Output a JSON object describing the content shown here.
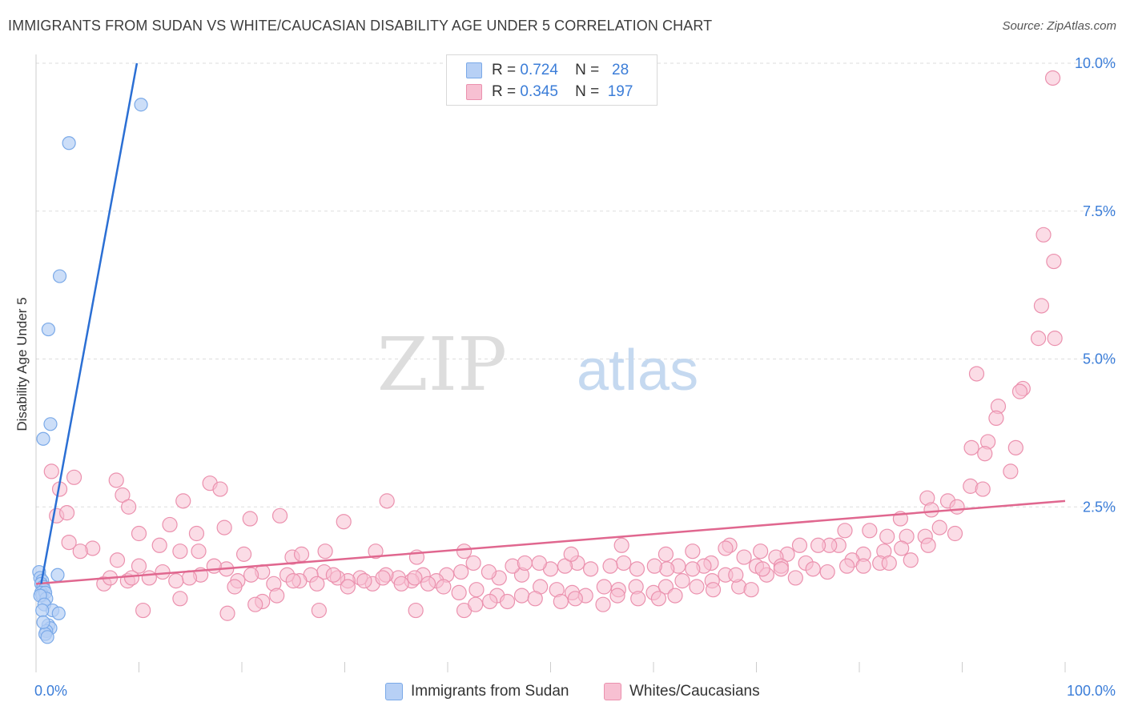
{
  "title": "IMMIGRANTS FROM SUDAN VS WHITE/CAUCASIAN DISABILITY AGE UNDER 5 CORRELATION CHART",
  "source": "Source: ZipAtlas.com",
  "watermark": {
    "part1": "ZIP",
    "part2": "atlas"
  },
  "colors": {
    "blue_fill": "#b7d0f5",
    "blue_stroke": "#7aa9e8",
    "blue_line": "#2b6fd4",
    "pink_fill": "#f7c0d2",
    "pink_stroke": "#eb91ae",
    "pink_line": "#e0678f",
    "value_text": "#3b7dd8",
    "grid": "#dddddd"
  },
  "legend": {
    "rows": [
      {
        "r_label": "R =",
        "r_value": "0.724",
        "n_label": "N =",
        "n_value": "28"
      },
      {
        "r_label": "R =",
        "r_value": "0.345",
        "n_label": "N =",
        "n_value": "197"
      }
    ]
  },
  "bottom_legend": {
    "series1": "Immigrants from Sudan",
    "series2": "Whites/Caucasians"
  },
  "chart_data": {
    "type": "scatter",
    "title": "IMMIGRANTS FROM SUDAN VS WHITE/CAUCASIAN DISABILITY AGE UNDER 5 CORRELATION CHART",
    "xlabel": "",
    "ylabel": "Disability Age Under 5",
    "xlim": [
      0,
      100
    ],
    "ylim": [
      0,
      10.3
    ],
    "x_tick_labels": [
      "0.0%",
      "100.0%"
    ],
    "y_ticks": [
      2.5,
      5.0,
      7.5,
      10.0
    ],
    "y_tick_labels": [
      "2.5%",
      "5.0%",
      "7.5%",
      "10.0%"
    ],
    "grid": true,
    "legend_position": "top-center",
    "series": [
      {
        "name": "Immigrants from Sudan",
        "color": "#b7d0f5",
        "trend": {
          "x": [
            0.5,
            9.8
          ],
          "y": [
            1.2,
            10.0
          ]
        },
        "points": [
          [
            10.2,
            9.3
          ],
          [
            3.2,
            8.65
          ],
          [
            2.3,
            6.4
          ],
          [
            1.2,
            5.5
          ],
          [
            1.4,
            3.9
          ],
          [
            0.7,
            3.65
          ],
          [
            2.1,
            1.35
          ],
          [
            0.3,
            1.4
          ],
          [
            0.4,
            1.3
          ],
          [
            0.6,
            1.25
          ],
          [
            0.5,
            1.2
          ],
          [
            0.7,
            1.15
          ],
          [
            0.8,
            1.1
          ],
          [
            0.5,
            1.05
          ],
          [
            0.6,
            1.0
          ],
          [
            0.9,
            1.05
          ],
          [
            1.0,
            0.95
          ],
          [
            0.4,
            1.0
          ],
          [
            0.8,
            0.85
          ],
          [
            1.6,
            0.75
          ],
          [
            0.6,
            0.75
          ],
          [
            2.2,
            0.7
          ],
          [
            1.2,
            0.5
          ],
          [
            1.4,
            0.45
          ],
          [
            1.0,
            0.4
          ],
          [
            0.9,
            0.35
          ],
          [
            1.1,
            0.3
          ],
          [
            0.7,
            0.55
          ]
        ]
      },
      {
        "name": "Whites/Caucasians",
        "color": "#f7c0d2",
        "trend": {
          "x": [
            0,
            100
          ],
          "y": [
            1.2,
            2.6
          ]
        },
        "points": [
          [
            98.8,
            9.75
          ],
          [
            97.9,
            7.1
          ],
          [
            98.9,
            6.65
          ],
          [
            97.7,
            5.9
          ],
          [
            99.0,
            5.35
          ],
          [
            97.4,
            5.35
          ],
          [
            91.4,
            4.75
          ],
          [
            95.9,
            4.5
          ],
          [
            95.6,
            4.45
          ],
          [
            93.5,
            4.2
          ],
          [
            93.3,
            4.0
          ],
          [
            92.5,
            3.6
          ],
          [
            95.2,
            3.5
          ],
          [
            90.9,
            3.5
          ],
          [
            92.2,
            3.4
          ],
          [
            94.7,
            3.1
          ],
          [
            90.8,
            2.85
          ],
          [
            92.0,
            2.8
          ],
          [
            86.6,
            2.65
          ],
          [
            88.6,
            2.6
          ],
          [
            89.5,
            2.5
          ],
          [
            87.0,
            2.45
          ],
          [
            84.0,
            2.3
          ],
          [
            87.8,
            2.15
          ],
          [
            89.3,
            2.05
          ],
          [
            86.4,
            2.0
          ],
          [
            84.6,
            2.0
          ],
          [
            82.7,
            2.0
          ],
          [
            81.0,
            2.1
          ],
          [
            78.6,
            2.1
          ],
          [
            78.0,
            1.85
          ],
          [
            86.7,
            1.85
          ],
          [
            84.1,
            1.8
          ],
          [
            82.4,
            1.75
          ],
          [
            80.4,
            1.7
          ],
          [
            77.1,
            1.85
          ],
          [
            76.0,
            1.85
          ],
          [
            74.2,
            1.85
          ],
          [
            73.0,
            1.7
          ],
          [
            71.9,
            1.65
          ],
          [
            70.4,
            1.75
          ],
          [
            68.8,
            1.65
          ],
          [
            67.4,
            1.85
          ],
          [
            65.6,
            1.55
          ],
          [
            64.9,
            1.5
          ],
          [
            63.8,
            1.45
          ],
          [
            62.4,
            1.5
          ],
          [
            61.3,
            1.45
          ],
          [
            60.1,
            1.5
          ],
          [
            58.4,
            1.45
          ],
          [
            57.1,
            1.55
          ],
          [
            55.8,
            1.5
          ],
          [
            53.9,
            1.45
          ],
          [
            52.6,
            1.55
          ],
          [
            51.4,
            1.5
          ],
          [
            50.0,
            1.45
          ],
          [
            48.9,
            1.55
          ],
          [
            47.2,
            1.35
          ],
          [
            46.3,
            1.5
          ],
          [
            45.0,
            1.3
          ],
          [
            44.0,
            1.4
          ],
          [
            42.5,
            1.55
          ],
          [
            41.3,
            1.4
          ],
          [
            39.9,
            1.35
          ],
          [
            38.9,
            1.25
          ],
          [
            37.6,
            1.35
          ],
          [
            36.5,
            1.25
          ],
          [
            35.2,
            1.3
          ],
          [
            34.0,
            1.35
          ],
          [
            32.7,
            1.2
          ],
          [
            31.5,
            1.3
          ],
          [
            30.3,
            1.25
          ],
          [
            29.3,
            1.3
          ],
          [
            28.0,
            1.4
          ],
          [
            26.7,
            1.35
          ],
          [
            25.6,
            1.25
          ],
          [
            24.4,
            1.35
          ],
          [
            23.1,
            1.2
          ],
          [
            22.0,
            1.4
          ],
          [
            20.9,
            1.35
          ],
          [
            19.6,
            1.25
          ],
          [
            18.5,
            1.45
          ],
          [
            17.3,
            1.5
          ],
          [
            16.0,
            1.35
          ],
          [
            14.9,
            1.3
          ],
          [
            13.6,
            1.25
          ],
          [
            12.3,
            1.4
          ],
          [
            11.0,
            1.3
          ],
          [
            10.0,
            1.5
          ],
          [
            8.9,
            1.25
          ],
          [
            7.9,
            1.6
          ],
          [
            6.6,
            1.2
          ],
          [
            5.5,
            1.8
          ],
          [
            4.3,
            1.75
          ],
          [
            3.2,
            1.9
          ],
          [
            2.0,
            2.35
          ],
          [
            2.3,
            2.8
          ],
          [
            1.5,
            3.1
          ],
          [
            3.7,
            3.0
          ],
          [
            7.8,
            2.95
          ],
          [
            16.9,
            2.9
          ],
          [
            17.9,
            2.8
          ],
          [
            14.3,
            2.6
          ],
          [
            8.4,
            2.7
          ],
          [
            9.0,
            2.5
          ],
          [
            3.0,
            2.4
          ],
          [
            20.8,
            2.3
          ],
          [
            23.7,
            2.35
          ],
          [
            29.9,
            2.25
          ],
          [
            34.1,
            2.6
          ],
          [
            13.0,
            2.2
          ],
          [
            12.0,
            1.85
          ],
          [
            14.0,
            1.75
          ],
          [
            15.8,
            1.75
          ],
          [
            10.0,
            2.05
          ],
          [
            15.6,
            2.05
          ],
          [
            18.3,
            2.15
          ],
          [
            20.2,
            1.7
          ],
          [
            24.9,
            1.65
          ],
          [
            25.8,
            1.7
          ],
          [
            28.1,
            1.75
          ],
          [
            33.0,
            1.75
          ],
          [
            37.0,
            1.65
          ],
          [
            41.6,
            1.75
          ],
          [
            47.5,
            1.55
          ],
          [
            52.0,
            1.7
          ],
          [
            56.9,
            1.85
          ],
          [
            61.2,
            1.7
          ],
          [
            63.8,
            1.75
          ],
          [
            67.0,
            1.8
          ],
          [
            70.0,
            1.5
          ],
          [
            72.4,
            1.5
          ],
          [
            74.8,
            1.55
          ],
          [
            79.3,
            1.6
          ],
          [
            82.0,
            1.55
          ],
          [
            85.0,
            1.6
          ],
          [
            7.2,
            1.3
          ],
          [
            9.3,
            1.3
          ],
          [
            14.0,
            0.95
          ],
          [
            10.4,
            0.75
          ],
          [
            19.3,
            1.15
          ],
          [
            18.6,
            0.7
          ],
          [
            22.0,
            0.9
          ],
          [
            23.4,
            1.0
          ],
          [
            25.0,
            1.25
          ],
          [
            27.3,
            1.2
          ],
          [
            28.9,
            1.35
          ],
          [
            30.3,
            1.15
          ],
          [
            31.9,
            1.25
          ],
          [
            33.7,
            1.3
          ],
          [
            35.5,
            1.2
          ],
          [
            36.8,
            1.3
          ],
          [
            38.1,
            1.2
          ],
          [
            39.6,
            1.15
          ],
          [
            41.1,
            1.05
          ],
          [
            42.8,
            1.1
          ],
          [
            44.8,
            1.0
          ],
          [
            45.8,
            0.9
          ],
          [
            47.2,
            1.0
          ],
          [
            49.0,
            1.15
          ],
          [
            50.6,
            1.1
          ],
          [
            52.1,
            1.05
          ],
          [
            53.4,
            1.0
          ],
          [
            55.2,
            1.15
          ],
          [
            56.6,
            1.1
          ],
          [
            58.3,
            1.15
          ],
          [
            60.0,
            1.05
          ],
          [
            61.2,
            1.15
          ],
          [
            62.8,
            1.25
          ],
          [
            64.2,
            1.15
          ],
          [
            65.7,
            1.25
          ],
          [
            67.0,
            1.35
          ],
          [
            68.3,
            1.15
          ],
          [
            69.5,
            1.1
          ],
          [
            71.0,
            1.35
          ],
          [
            72.4,
            1.45
          ],
          [
            73.8,
            1.3
          ],
          [
            75.5,
            1.45
          ],
          [
            76.9,
            1.4
          ],
          [
            78.8,
            1.5
          ],
          [
            80.4,
            1.5
          ],
          [
            82.9,
            1.55
          ],
          [
            27.5,
            0.75
          ],
          [
            21.3,
            0.85
          ],
          [
            36.9,
            0.75
          ],
          [
            41.6,
            0.75
          ],
          [
            42.7,
            0.85
          ],
          [
            44.1,
            0.9
          ],
          [
            48.5,
            0.95
          ],
          [
            51.0,
            0.9
          ],
          [
            52.4,
            0.95
          ],
          [
            55.1,
            0.85
          ],
          [
            56.5,
            1.0
          ],
          [
            58.5,
            0.95
          ],
          [
            60.5,
            0.95
          ],
          [
            62.1,
            1.0
          ],
          [
            65.8,
            1.1
          ],
          [
            68.0,
            1.35
          ],
          [
            70.6,
            1.45
          ]
        ]
      }
    ]
  }
}
